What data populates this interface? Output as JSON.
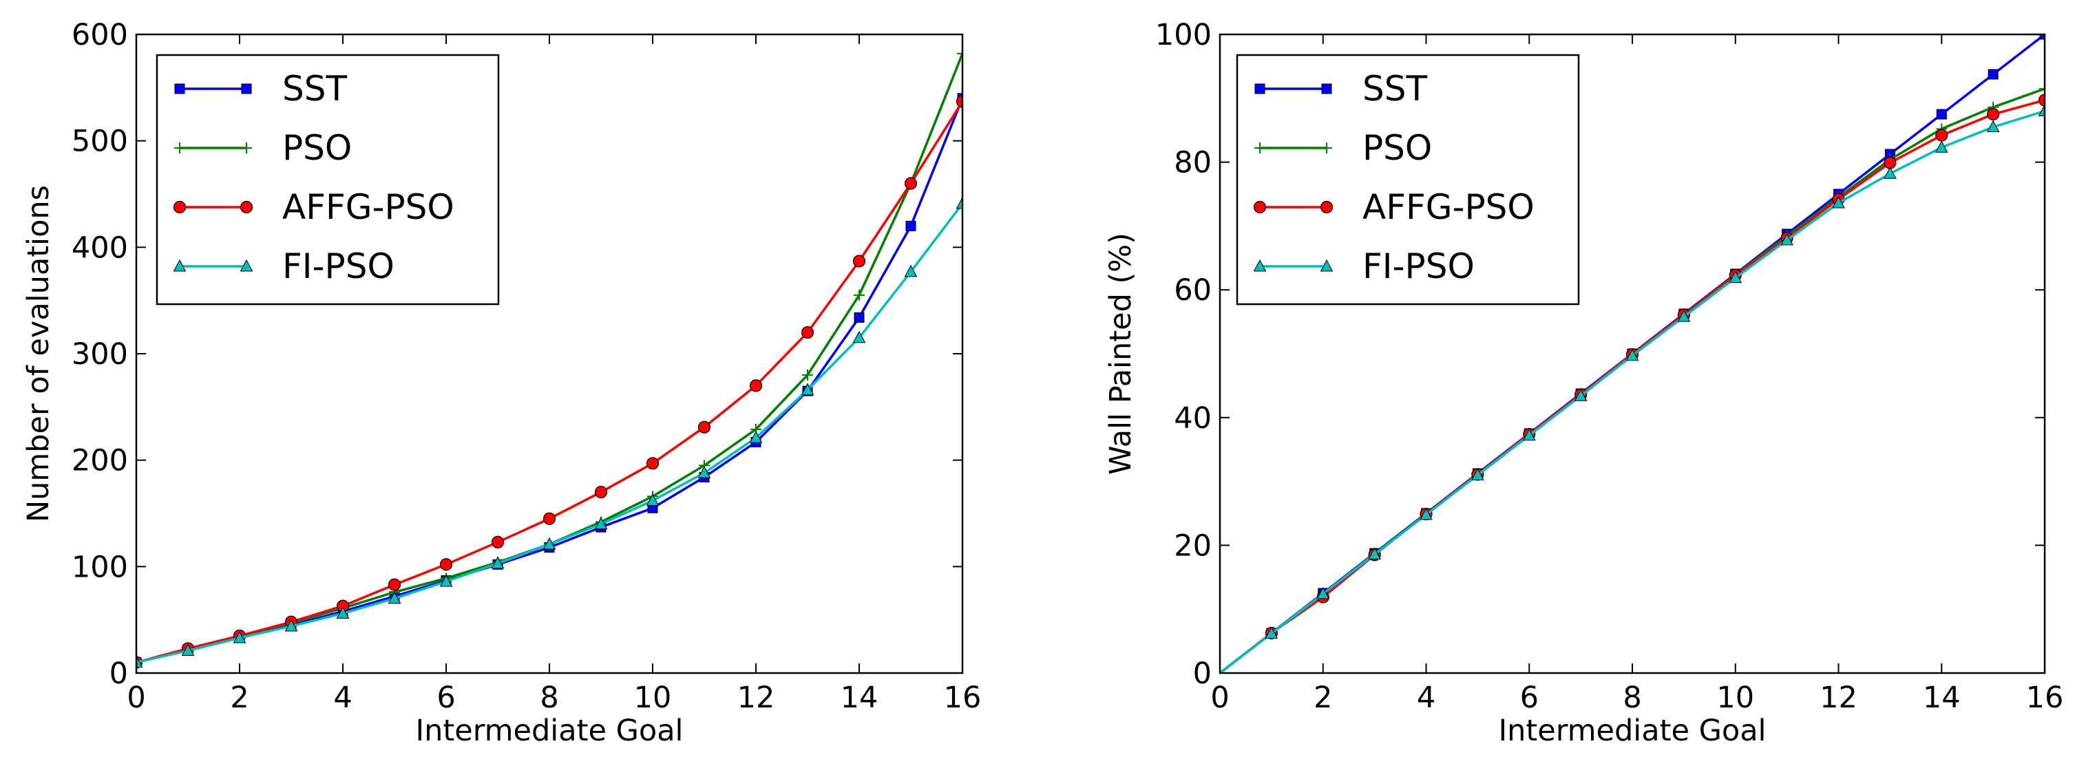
{
  "figure": "two-panel line chart",
  "legend_labels": [
    "SST",
    "PSO",
    "AFFG-PSO",
    "FI-PSO"
  ],
  "colors": {
    "SST": "#0000ff",
    "PSO": "#008000",
    "AFFG-PSO": "#ff0000",
    "FI-PSO": "#00bfbf"
  },
  "chart_data": [
    {
      "type": "line",
      "title": "",
      "xlabel": "Intermediate Goal",
      "ylabel": "Number of evaluations",
      "xlim": [
        0,
        16
      ],
      "ylim": [
        0,
        600
      ],
      "xticks": [
        0,
        2,
        4,
        6,
        8,
        10,
        12,
        14,
        16
      ],
      "yticks": [
        0,
        100,
        200,
        300,
        400,
        500,
        600
      ],
      "legend_position": "upper-left",
      "x": [
        0,
        1,
        2,
        3,
        4,
        5,
        6,
        7,
        8,
        9,
        10,
        11,
        12,
        13,
        14,
        15,
        16
      ],
      "series": [
        {
          "name": "SST",
          "marker": "square",
          "values": [
            10,
            22,
            33,
            45,
            58,
            72,
            87,
            102,
            118,
            137,
            155,
            184,
            217,
            265,
            334,
            420,
            540
          ]
        },
        {
          "name": "PSO",
          "marker": "plus",
          "values": [
            10,
            22,
            35,
            47,
            61,
            76,
            89,
            104,
            121,
            142,
            166,
            195,
            229,
            280,
            355,
            460,
            582
          ]
        },
        {
          "name": "AFFG-PSO",
          "marker": "circle",
          "values": [
            10,
            23,
            35,
            48,
            63,
            83,
            102,
            123,
            145,
            170,
            197,
            231,
            270,
            320,
            387,
            460,
            537
          ]
        },
        {
          "name": "FI-PSO",
          "marker": "triangle",
          "values": [
            10,
            21,
            33,
            44,
            56,
            70,
            86,
            103,
            121,
            140,
            162,
            188,
            221,
            266,
            315,
            377,
            441
          ]
        }
      ]
    },
    {
      "type": "line",
      "title": "",
      "xlabel": "Intermediate Goal",
      "ylabel": "Wall Painted (%)",
      "xlim": [
        0,
        16
      ],
      "ylim": [
        0,
        100
      ],
      "xticks": [
        0,
        2,
        4,
        6,
        8,
        10,
        12,
        14,
        16
      ],
      "yticks": [
        0,
        20,
        40,
        60,
        80,
        100
      ],
      "legend_position": "upper-left",
      "x": [
        0,
        1,
        2,
        3,
        4,
        5,
        6,
        7,
        8,
        9,
        10,
        11,
        12,
        13,
        14,
        15,
        16
      ],
      "series": [
        {
          "name": "SST",
          "marker": "square",
          "values": [
            0,
            6.25,
            12.5,
            18.75,
            25,
            31.25,
            37.5,
            43.75,
            50,
            56.25,
            62.5,
            68.75,
            75,
            81.25,
            87.5,
            93.75,
            100
          ]
        },
        {
          "name": "PSO",
          "marker": "plus",
          "values": [
            0,
            6.25,
            12.2,
            18.6,
            24.9,
            31.1,
            37.4,
            43.6,
            49.9,
            56.1,
            62.4,
            68.4,
            74.5,
            80.4,
            85.2,
            88.6,
            91.5
          ]
        },
        {
          "name": "AFFG-PSO",
          "marker": "circle",
          "values": [
            0,
            6.25,
            11.9,
            18.5,
            24.9,
            31.1,
            37.4,
            43.6,
            49.9,
            56.1,
            62.3,
            68.1,
            74.2,
            79.9,
            84.2,
            87.5,
            89.7
          ]
        },
        {
          "name": "FI-PSO",
          "marker": "triangle",
          "values": [
            0,
            6.2,
            12.4,
            18.6,
            24.8,
            31.0,
            37.2,
            43.4,
            49.7,
            55.8,
            61.9,
            67.8,
            73.6,
            78.2,
            82.3,
            85.5,
            88.0
          ]
        }
      ]
    }
  ]
}
